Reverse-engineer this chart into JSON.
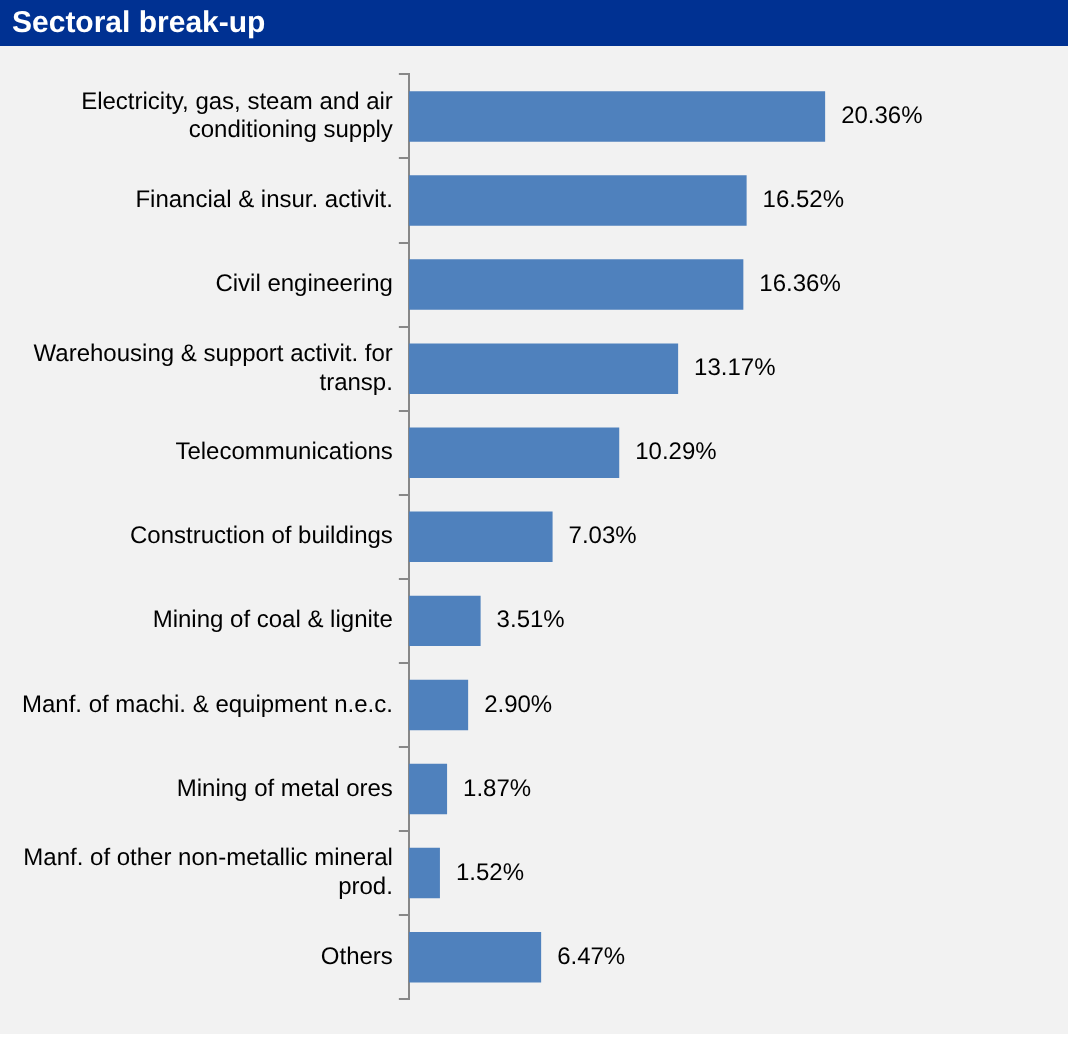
{
  "chart_data": {
    "type": "bar",
    "orientation": "horizontal",
    "title": "Sectoral break-up",
    "categories": [
      "Electricity, gas, steam and air conditioning supply",
      "Financial & insur. activit.",
      "Civil engineering",
      "Warehousing & support activit. for transp.",
      "Telecommunications",
      "Construction of buildings",
      "Mining of coal & lignite",
      "Manf. of machi. & equipment n.e.c.",
      "Mining of metal ores",
      "Manf. of other non-metallic mineral prod.",
      "Others"
    ],
    "values": [
      20.36,
      16.52,
      16.36,
      13.17,
      10.29,
      7.03,
      3.51,
      2.9,
      1.87,
      1.52,
      6.47
    ],
    "value_labels": [
      "20.36%",
      "16.52%",
      "16.36%",
      "13.17%",
      "10.29%",
      "7.03%",
      "3.51%",
      "2.90%",
      "1.87%",
      "1.52%",
      "6.47%"
    ],
    "color": "#4f81bd",
    "legend": false
  }
}
